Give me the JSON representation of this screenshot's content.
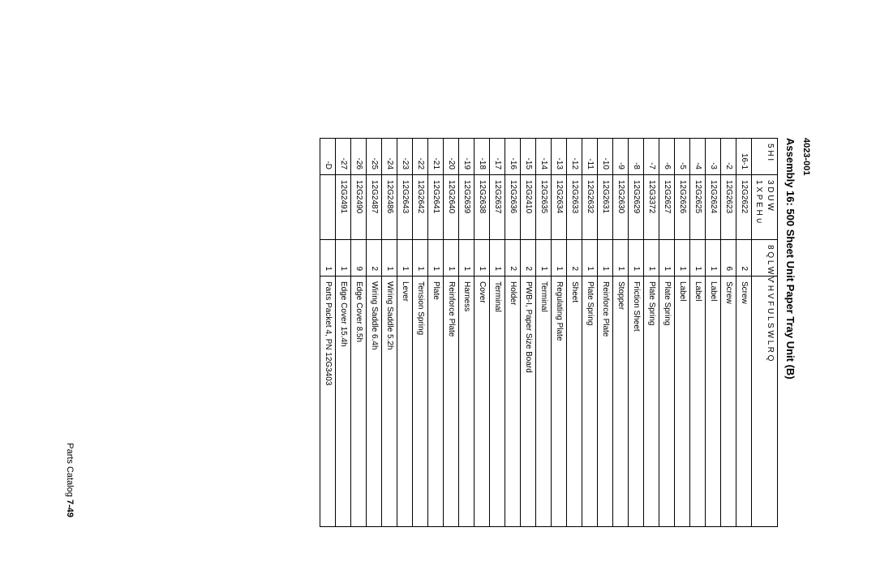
{
  "doc_number": "4023-001",
  "title": "Assembly 16: 500 Sheet Unit Paper Tray Unit (B)",
  "footer_left": "Parts Catalog",
  "footer_page": "7-49",
  "columns": {
    "c1a": "5 H I",
    "c2a": "3 D U W",
    "c2b": "1 X P E H ∪",
    "c3a": "8 Q L W V",
    "c4a": "' H V F U L S W L R Q"
  },
  "rows": [
    {
      "ref": "16-1",
      "pn": "12G2622",
      "qty": "2",
      "desc": "Screw"
    },
    {
      "ref": "-2",
      "pn": "12G2623",
      "qty": "6",
      "desc": "Screw"
    },
    {
      "ref": "-3",
      "pn": "12G2624",
      "qty": "1",
      "desc": "Label"
    },
    {
      "ref": "-4",
      "pn": "12G2625",
      "qty": "1",
      "desc": "Label"
    },
    {
      "ref": "-5",
      "pn": "12G2626",
      "qty": "1",
      "desc": "Label"
    },
    {
      "ref": "-6",
      "pn": "12G2627",
      "qty": "1",
      "desc": "Plate Spring"
    },
    {
      "ref": "-7",
      "pn": "12G3372",
      "qty": "1",
      "desc": "Plate Spring"
    },
    {
      "ref": "-8",
      "pn": "12G2629",
      "qty": "1",
      "desc": "Friction Sheet"
    },
    {
      "ref": "-9",
      "pn": "12G2630",
      "qty": "1",
      "desc": "Stopper"
    },
    {
      "ref": "-10",
      "pn": "12G2631",
      "qty": "1",
      "desc": "Reinforce Plate"
    },
    {
      "ref": "-11",
      "pn": "12G2632",
      "qty": "1",
      "desc": "Plate Spring"
    },
    {
      "ref": "-12",
      "pn": "12G2633",
      "qty": "2",
      "desc": "Sheet"
    },
    {
      "ref": "-13",
      "pn": "12G2634",
      "qty": "1",
      "desc": "Regulating Plate"
    },
    {
      "ref": "-14",
      "pn": "12G2635",
      "qty": "1",
      "desc": "Terminal"
    },
    {
      "ref": "-15",
      "pn": "12G2410",
      "qty": "2",
      "desc": "PWB-I, Paper Size Board"
    },
    {
      "ref": "-16",
      "pn": "12G2636",
      "qty": "2",
      "desc": "Holder"
    },
    {
      "ref": "-17",
      "pn": "12G2637",
      "qty": "1",
      "desc": "Terminal"
    },
    {
      "ref": "-18",
      "pn": "12G2638",
      "qty": "1",
      "desc": "Cover"
    },
    {
      "ref": "-19",
      "pn": "12G2639",
      "qty": "1",
      "desc": "Harness"
    },
    {
      "ref": "-20",
      "pn": "12G2640",
      "qty": "1",
      "desc": "Reinforce Plate"
    },
    {
      "ref": "-21",
      "pn": "12G2641",
      "qty": "1",
      "desc": "Plate"
    },
    {
      "ref": "-22",
      "pn": "12G2642",
      "qty": "1",
      "desc": "Tension Spring"
    },
    {
      "ref": "-23",
      "pn": "12G2643",
      "qty": "1",
      "desc": "Lever"
    },
    {
      "ref": "-24",
      "pn": "12G2486",
      "qty": "1",
      "desc": "Wiring Saddle 5.2h"
    },
    {
      "ref": "-25",
      "pn": "12G2487",
      "qty": "2",
      "desc": "Wiring Saddle 6.4h"
    },
    {
      "ref": "-26",
      "pn": "12G2490",
      "qty": "9",
      "desc": "Edge Cover 8.5h"
    },
    {
      "ref": "-27",
      "pn": "12G2491",
      "qty": "1",
      "desc": "Edge Cover 15.4h"
    },
    {
      "ref": "-D",
      "pn": "",
      "qty": "1",
      "desc": "Parts Packet 4, PN 12G3403"
    }
  ]
}
